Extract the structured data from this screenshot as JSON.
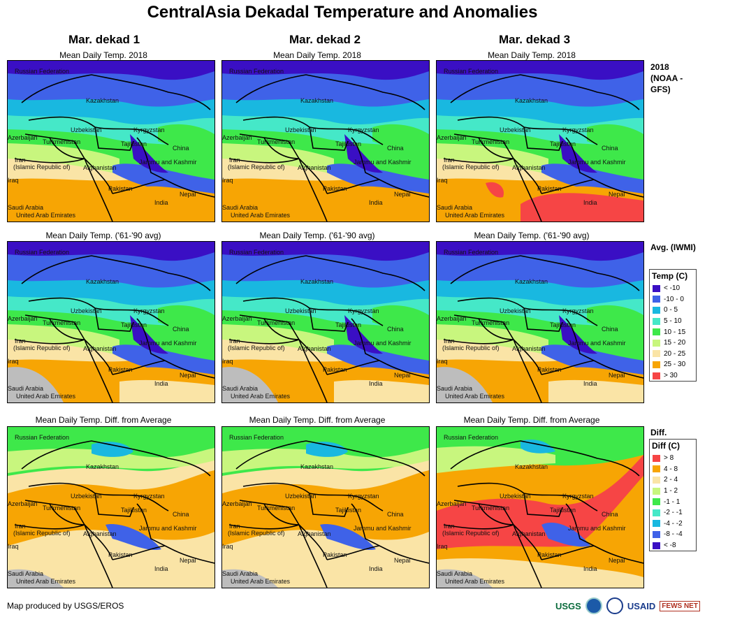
{
  "title": "CentralAsia Dekadal Temperature and Anomalies",
  "columns": [
    "Mar. dekad 1",
    "Mar. dekad 2",
    "Mar. dekad 3"
  ],
  "rows": [
    {
      "subtitle": "Mean Daily Temp. 2018",
      "side_label": "2018 (NOAA -GFS)"
    },
    {
      "subtitle": "Mean Daily Temp. ('61-'90 avg)",
      "side_label": "Avg. (IWMI)"
    },
    {
      "subtitle": "Mean Daily Temp. Diff. from Average",
      "side_label": "Diff."
    }
  ],
  "map_labels": {
    "russia": "Russian Federation",
    "kazakhstan": "Kazakhstan",
    "uzbekistan": "Uzbekistan",
    "kyrgyzstan": "Kyrgyzstan",
    "azerbaijan": "Azerbaijan",
    "turkmenistan": "Turkmenistan",
    "tajikistan": "Tajikistan",
    "china": "China",
    "iran1": "Iran",
    "iran2": "(Islamic Republic of)",
    "afghanistan": "Afghanistan",
    "jammu": "Jammu and Kashmir",
    "iraq": "Iraq",
    "pakistan": "Pakistan",
    "nepal": "Nepal",
    "india": "India",
    "saudi": "Saudi Arabia",
    "uae": "United Arab Emirates"
  },
  "temp_legend": {
    "title": "Temp (C)",
    "items": [
      {
        "label": "< -10",
        "color": "#3a0fc4"
      },
      {
        "label": "-10 - 0",
        "color": "#3f62e8"
      },
      {
        "label": "0 - 5",
        "color": "#19b8e0"
      },
      {
        "label": "5 - 10",
        "color": "#45e8c8"
      },
      {
        "label": "10 - 15",
        "color": "#3ee84a"
      },
      {
        "label": "15 - 20",
        "color": "#c8f67e"
      },
      {
        "label": "20 - 25",
        "color": "#fae4a6"
      },
      {
        "label": "25 - 30",
        "color": "#f7a504"
      },
      {
        "label": "> 30",
        "color": "#f64545"
      }
    ]
  },
  "diff_legend": {
    "title": "Diff (C)",
    "items": [
      {
        "label": "> 8",
        "color": "#f64545"
      },
      {
        "label": "4 - 8",
        "color": "#f7a504"
      },
      {
        "label": "2 - 4",
        "color": "#fae4a6"
      },
      {
        "label": "1 - 2",
        "color": "#c8f67e"
      },
      {
        "label": "-1 - 1",
        "color": "#3ee84a"
      },
      {
        "label": "-2 - -1",
        "color": "#45e8c8"
      },
      {
        "label": "-4 - -2",
        "color": "#19b8e0"
      },
      {
        "label": "-8 - -4",
        "color": "#3f62e8"
      },
      {
        "label": "< -8",
        "color": "#3a0fc4"
      }
    ]
  },
  "credit": "Map produced by USGS/EROS",
  "logos": {
    "usgs": "USGS",
    "usaid": "USAID",
    "fewsnet": "FEWS NET"
  }
}
